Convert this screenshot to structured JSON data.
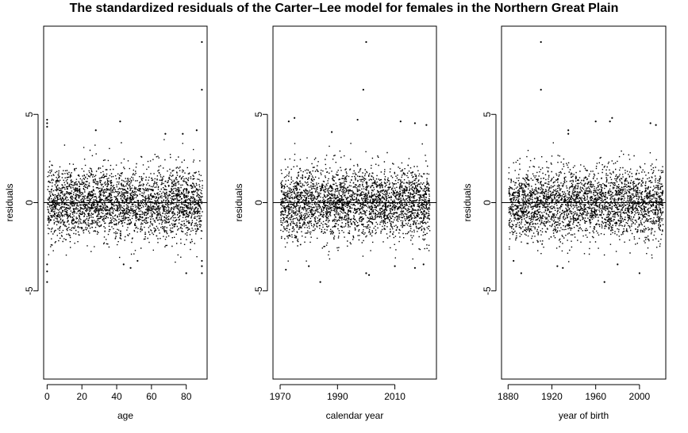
{
  "title": "The standardized residuals of the Carter–Lee model for females in the Northern Great Plain",
  "chart_data": [
    {
      "type": "scatter",
      "xlabel": "age",
      "ylabel": "residuals",
      "xlim": [
        -2,
        92
      ],
      "ylim": [
        -10,
        10
      ],
      "xticks": [
        0,
        20,
        40,
        60,
        80
      ],
      "yticks": [
        -5,
        0,
        5
      ],
      "reference_line_y": 0,
      "points": [
        [
          89,
          9.1
        ],
        [
          89,
          6.4
        ],
        [
          0,
          4.7
        ],
        [
          0,
          4.5
        ],
        [
          0,
          4.3
        ],
        [
          28,
          4.1
        ],
        [
          42,
          4.6
        ],
        [
          68,
          3.9
        ],
        [
          78,
          3.9
        ],
        [
          86,
          4.1
        ],
        [
          0,
          -4.5
        ],
        [
          0,
          -3.9
        ],
        [
          0,
          -3.5
        ],
        [
          44,
          -3.5
        ],
        [
          48,
          -3.7
        ],
        [
          52,
          -3.3
        ],
        [
          80,
          -4.0
        ],
        [
          89,
          -4.0
        ],
        [
          89,
          -3.6
        ],
        [
          89,
          -3.3
        ]
      ],
      "cloud": {
        "x_range": [
          0,
          89
        ],
        "center": 0.0,
        "spread": 1.0,
        "count": 3000
      }
    },
    {
      "type": "scatter",
      "xlabel": "calendar year",
      "ylabel": "residuals",
      "xlim": [
        1967.5,
        2024.5
      ],
      "ylim": [
        -10,
        10
      ],
      "xticks": [
        1970,
        1990,
        2010
      ],
      "yticks": [
        -5,
        0,
        5
      ],
      "reference_line_y": 0,
      "points": [
        [
          2000,
          9.1
        ],
        [
          1999,
          6.4
        ],
        [
          1973,
          4.6
        ],
        [
          1975,
          4.8
        ],
        [
          1988,
          4.0
        ],
        [
          1997,
          4.7
        ],
        [
          2012,
          4.6
        ],
        [
          2017,
          4.5
        ],
        [
          2021,
          4.4
        ],
        [
          1984,
          -4.5
        ],
        [
          2000,
          -4.0
        ],
        [
          2001,
          -4.1
        ],
        [
          1972,
          -3.8
        ],
        [
          1980,
          -3.6
        ],
        [
          2010,
          -3.6
        ],
        [
          2017,
          -3.7
        ],
        [
          2020,
          -3.5
        ]
      ],
      "cloud": {
        "x_range": [
          1970,
          2022
        ],
        "center": 0.0,
        "spread": 1.0,
        "count": 3000
      }
    },
    {
      "type": "scatter",
      "xlabel": "year of birth",
      "ylabel": "residuals",
      "xlim": [
        1874,
        2024
      ],
      "ylim": [
        -10,
        10
      ],
      "xticks": [
        1880,
        1920,
        1960,
        2000
      ],
      "yticks": [
        -5,
        0,
        5
      ],
      "reference_line_y": 0,
      "points": [
        [
          1910,
          9.1
        ],
        [
          1910,
          6.4
        ],
        [
          1935,
          4.1
        ],
        [
          1935,
          3.9
        ],
        [
          1960,
          4.6
        ],
        [
          1973,
          4.6
        ],
        [
          1975,
          4.8
        ],
        [
          2010,
          4.5
        ],
        [
          2015,
          4.4
        ],
        [
          1968,
          -4.5
        ],
        [
          2000,
          -4.0
        ],
        [
          1925,
          -3.6
        ],
        [
          1885,
          -3.3
        ],
        [
          1892,
          -4.0
        ],
        [
          1930,
          -3.7
        ],
        [
          1980,
          -3.5
        ]
      ],
      "cloud": {
        "x_range": [
          1880,
          2021
        ],
        "center": 0.0,
        "spread": 1.0,
        "count": 3000
      }
    }
  ]
}
